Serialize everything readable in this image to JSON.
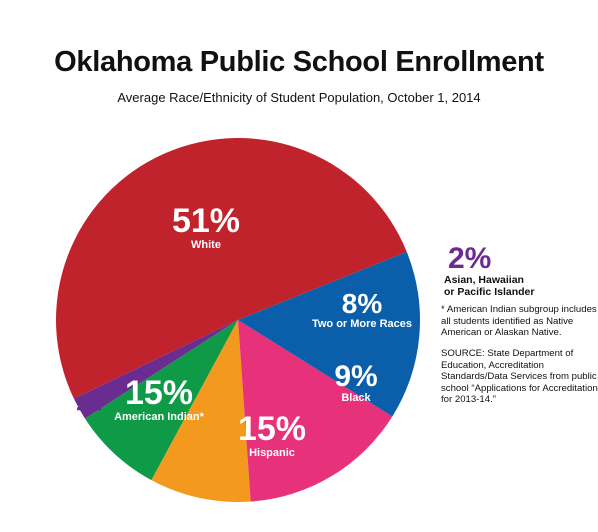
{
  "title": "Oklahoma Public School Enrollment",
  "subtitle": "Average Race/Ethnicity of Student Population, October 1, 2014",
  "chart_data": {
    "type": "pie",
    "unit": "%",
    "slices": [
      {
        "name": "White",
        "value": 51,
        "label": "51%",
        "color": "#c0232c"
      },
      {
        "name": "Asian, Hawaiian or Pacific Islander",
        "value": 2,
        "label": "2%",
        "color": "#6b2c91",
        "label_lines": [
          "Asian, Hawaiian",
          "or Pacific Islander"
        ]
      },
      {
        "name": "Two or More Races",
        "value": 8,
        "label": "8%",
        "color": "#0f9a48"
      },
      {
        "name": "Black",
        "value": 9,
        "label": "9%",
        "color": "#f39a1e"
      },
      {
        "name": "Hispanic",
        "value": 15,
        "label": "15%",
        "color": "#e8317b"
      },
      {
        "name": "American Indian*",
        "value": 15,
        "label": "15%",
        "color": "#0b5faa"
      }
    ]
  },
  "notes": {
    "footnote": "* American Indian subgroup includes all students identified as Native American or Alaskan Native.",
    "source": "SOURCE: State Department of Education, Accreditation Standards/Data Services from public school “Applications for Accreditation for 2013-14.”"
  }
}
